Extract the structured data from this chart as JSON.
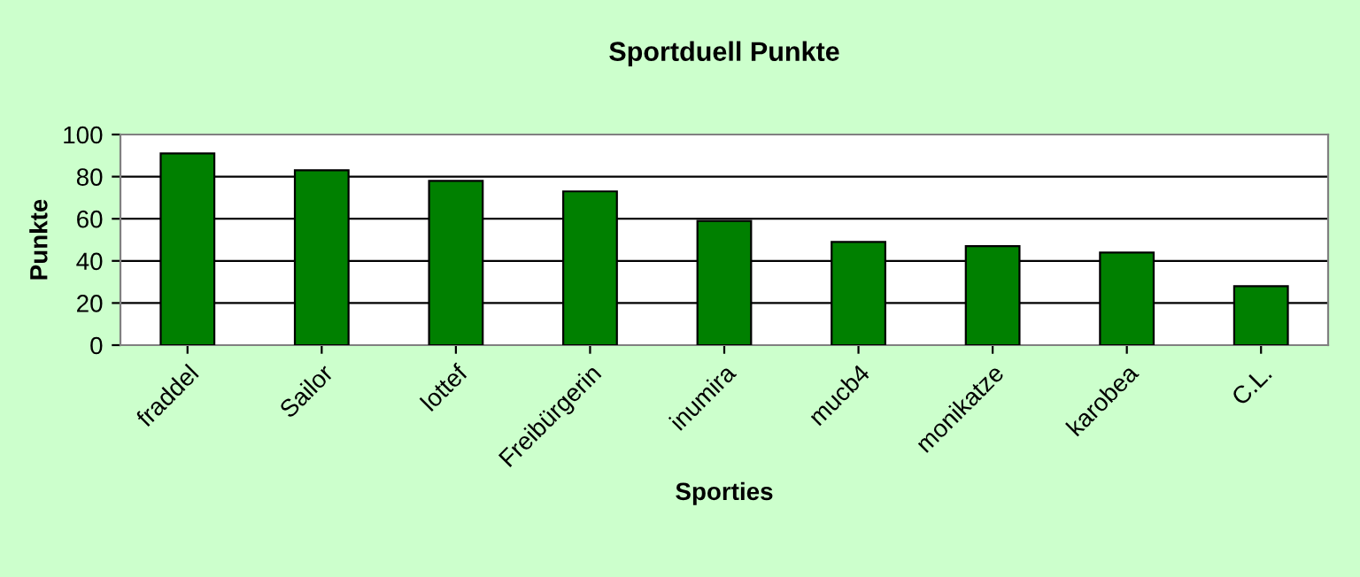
{
  "chart_data": {
    "type": "bar",
    "title": "Sportduell Punkte",
    "xlabel": "Sporties",
    "ylabel": "Punkte",
    "categories": [
      "fraddel",
      "Sailor",
      "lottef",
      "Freibürgerin",
      "inumira",
      "mucb4",
      "monikatze",
      "karobea",
      "C.L."
    ],
    "values": [
      91,
      83,
      78,
      73,
      59,
      49,
      47,
      44,
      28
    ],
    "color": "#008000",
    "ylim": [
      0,
      100
    ],
    "yticks": [
      0,
      20,
      40,
      60,
      80,
      100
    ],
    "grid": "y",
    "legend": false
  }
}
